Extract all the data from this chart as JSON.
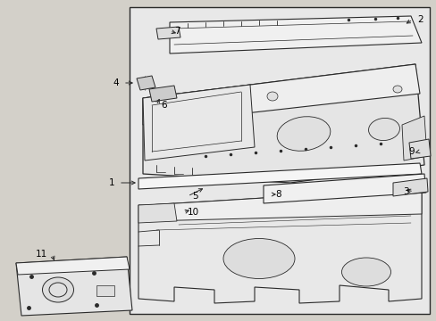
{
  "bg_color": "#d3d0c9",
  "white": "#ffffff",
  "line_color": "#2a2a2a",
  "fig_width": 4.89,
  "fig_height": 3.6,
  "dpi": 100
}
